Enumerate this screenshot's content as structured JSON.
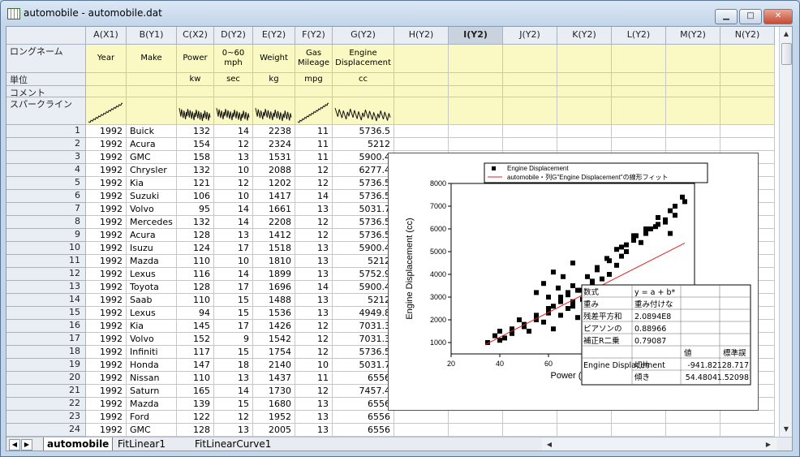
{
  "window": {
    "title": "automobile - automobile.dat",
    "btn_min": "▁",
    "btn_max": "□",
    "btn_close": "✕"
  },
  "columns": [
    {
      "id": "A(X1)",
      "long": "Year",
      "unit": "",
      "w": 50,
      "align": "r"
    },
    {
      "id": "B(Y1)",
      "long": "Make",
      "unit": "",
      "w": 62,
      "align": "l"
    },
    {
      "id": "C(X2)",
      "long": "Power",
      "unit": "kw",
      "w": 46,
      "align": "r"
    },
    {
      "id": "D(Y2)",
      "long": "0~60 mph",
      "unit": "sec",
      "w": 48,
      "align": "r"
    },
    {
      "id": "E(Y2)",
      "long": "Weight",
      "unit": "kg",
      "w": 52,
      "align": "r"
    },
    {
      "id": "F(Y2)",
      "long": "Gas Mileage",
      "unit": "mpg",
      "w": 46,
      "align": "r"
    },
    {
      "id": "G(Y2)",
      "long": "Engine Displacement",
      "unit": "cc",
      "w": 76,
      "align": "r"
    },
    {
      "id": "H(Y2)",
      "long": "",
      "unit": "",
      "w": 67,
      "align": "r"
    },
    {
      "id": "I(Y2)",
      "long": "",
      "unit": "",
      "w": 67,
      "align": "r",
      "selected": true
    },
    {
      "id": "J(Y2)",
      "long": "",
      "unit": "",
      "w": 67,
      "align": "r"
    },
    {
      "id": "K(Y2)",
      "long": "",
      "unit": "",
      "w": 67,
      "align": "r"
    },
    {
      "id": "L(Y2)",
      "long": "",
      "unit": "",
      "w": 67,
      "align": "r"
    },
    {
      "id": "M(Y2)",
      "long": "",
      "unit": "",
      "w": 67,
      "align": "r"
    },
    {
      "id": "N(Y2)",
      "long": "",
      "unit": "",
      "w": 67,
      "align": "r"
    }
  ],
  "row_labels": {
    "long_name": "ロングネーム",
    "unit": "単位",
    "comment": "コメント",
    "sparkline": "スパークライン"
  },
  "sparklines": [
    "rising",
    "none",
    "noisy",
    "noisy",
    "noisy",
    "rising",
    "noisy"
  ],
  "rows": [
    [
      1,
      1992,
      "Buick",
      132,
      14,
      2238,
      11,
      "5736.5"
    ],
    [
      2,
      1992,
      "Acura",
      154,
      12,
      2324,
      11,
      "5212"
    ],
    [
      3,
      1992,
      "GMC",
      158,
      13,
      1531,
      11,
      "5900.4"
    ],
    [
      4,
      1992,
      "Chrysler",
      132,
      10,
      2088,
      12,
      "6277.4"
    ],
    [
      5,
      1992,
      "Kia",
      121,
      12,
      1202,
      12,
      "5736.5"
    ],
    [
      6,
      1992,
      "Suzuki",
      106,
      10,
      1417,
      14,
      "5736.5"
    ],
    [
      7,
      1992,
      "Volvo",
      95,
      14,
      1661,
      13,
      "5031.7"
    ],
    [
      8,
      1992,
      "Mercedes",
      132,
      14,
      2208,
      12,
      "5736.5"
    ],
    [
      9,
      1992,
      "Acura",
      128,
      13,
      1412,
      12,
      "5736.5"
    ],
    [
      10,
      1992,
      "Isuzu",
      124,
      17,
      1518,
      13,
      "5900.4"
    ],
    [
      11,
      1992,
      "Mazda",
      110,
      10,
      1810,
      13,
      "5212"
    ],
    [
      12,
      1992,
      "Lexus",
      116,
      14,
      1899,
      13,
      "5752.9"
    ],
    [
      13,
      1992,
      "Toyota",
      128,
      17,
      1696,
      14,
      "5900.4"
    ],
    [
      14,
      1992,
      "Saab",
      110,
      15,
      1488,
      13,
      "5212"
    ],
    [
      15,
      1992,
      "Lexus",
      94,
      15,
      1536,
      13,
      "4949.8"
    ],
    [
      16,
      1992,
      "Kia",
      145,
      17,
      1426,
      12,
      "7031.3"
    ],
    [
      17,
      1992,
      "Volvo",
      152,
      9,
      1542,
      12,
      "7031.3"
    ],
    [
      18,
      1992,
      "Infiniti",
      117,
      15,
      1754,
      12,
      "5736.5"
    ],
    [
      19,
      1992,
      "Honda",
      147,
      18,
      2140,
      10,
      "5031.7"
    ],
    [
      20,
      1992,
      "Nissan",
      110,
      13,
      1437,
      11,
      "6556"
    ],
    [
      21,
      1992,
      "Saturn",
      165,
      14,
      1730,
      12,
      "7457.4"
    ],
    [
      22,
      1992,
      "Mazda",
      139,
      15,
      1680,
      13,
      "6556"
    ],
    [
      23,
      1992,
      "Ford",
      122,
      12,
      1952,
      13,
      "6556"
    ],
    [
      24,
      1992,
      "GMC",
      128,
      13,
      2005,
      13,
      "6556"
    ]
  ],
  "tabs": [
    {
      "label": "automobile",
      "active": true
    },
    {
      "label": "FitLinear1",
      "active": false
    },
    {
      "label": "FitLinearCurve1",
      "active": false
    }
  ],
  "graph": {
    "legend": [
      "Engine Displacement",
      "automobile・列G\"Engine Displacement\"の線形フィット"
    ],
    "xlabel": "Power (kw)",
    "ylabel": "Engine Displacement (cc)",
    "stats": {
      "rows": [
        [
          "数式",
          "y = a + b*",
          ""
        ],
        [
          "重み",
          "重み付けな",
          ""
        ],
        [
          "残差平方和",
          "2.0894E8",
          ""
        ],
        [
          "ピアソンの",
          "0.88966",
          ""
        ],
        [
          "補正R二乗",
          "0.79087",
          ""
        ]
      ],
      "header": [
        "値",
        "標準誤"
      ],
      "param_label": "Engine Displacement",
      "params": [
        [
          "切片",
          "-941.82",
          "128.717"
        ],
        [
          "傾き",
          "54.4804",
          "1.52098"
        ]
      ]
    }
  },
  "chart_data": {
    "type": "scatter",
    "title": "",
    "xlabel": "Power (kw)",
    "ylabel": "Engine Displacement (cc)",
    "xlim": [
      20,
      120
    ],
    "ylim": [
      500,
      8000
    ],
    "xticks": [
      20,
      40,
      60,
      80,
      100
    ],
    "yticks": [
      1000,
      2000,
      3000,
      4000,
      5000,
      6000,
      7000,
      8000
    ],
    "legend_position": "top",
    "series": [
      {
        "name": "Engine Displacement",
        "kind": "points",
        "color": "#000000",
        "x": [
          35,
          38,
          40,
          42,
          45,
          48,
          50,
          52,
          55,
          58,
          60,
          62,
          65,
          68,
          70,
          72,
          75,
          78,
          80,
          82,
          85,
          88,
          90,
          92,
          95,
          98,
          100,
          102,
          105,
          108,
          110,
          112,
          115,
          40,
          45,
          50,
          55,
          60,
          62,
          65,
          68,
          70,
          73,
          76,
          80,
          84,
          88,
          92,
          96,
          100,
          104,
          108,
          112,
          116,
          45,
          50,
          55,
          60,
          65,
          70,
          75,
          80,
          85,
          90,
          95,
          100,
          105,
          110,
          55,
          58,
          62,
          66,
          70,
          74,
          78,
          60,
          64,
          68,
          72,
          76
        ],
        "y": [
          1000,
          1300,
          1500,
          1200,
          1600,
          2000,
          1800,
          1500,
          2200,
          1900,
          2400,
          1600,
          2800,
          3100,
          2600,
          3300,
          3000,
          3600,
          4200,
          3800,
          4600,
          4400,
          5200,
          5000,
          5700,
          5400,
          5800,
          6000,
          6200,
          6400,
          6800,
          7000,
          7400,
          1100,
          1400,
          1700,
          2000,
          2300,
          2600,
          3000,
          3200,
          3500,
          3300,
          3900,
          4300,
          4700,
          5100,
          5300,
          5700,
          5900,
          6100,
          6300,
          6600,
          7200,
          1500,
          1700,
          2100,
          2500,
          2200,
          2800,
          2600,
          3400,
          4000,
          4800,
          5500,
          6000,
          6500,
          5800,
          3200,
          3600,
          4100,
          3900,
          4500,
          2900,
          3700,
          3000,
          3400,
          2500,
          2100,
          1900
        ]
      },
      {
        "name": "automobile・列G\"Engine Displacement\"の線形フィット",
        "kind": "line",
        "color": "#e02020",
        "x": [
          34,
          116
        ],
        "y": [
          910,
          5378
        ]
      }
    ]
  }
}
